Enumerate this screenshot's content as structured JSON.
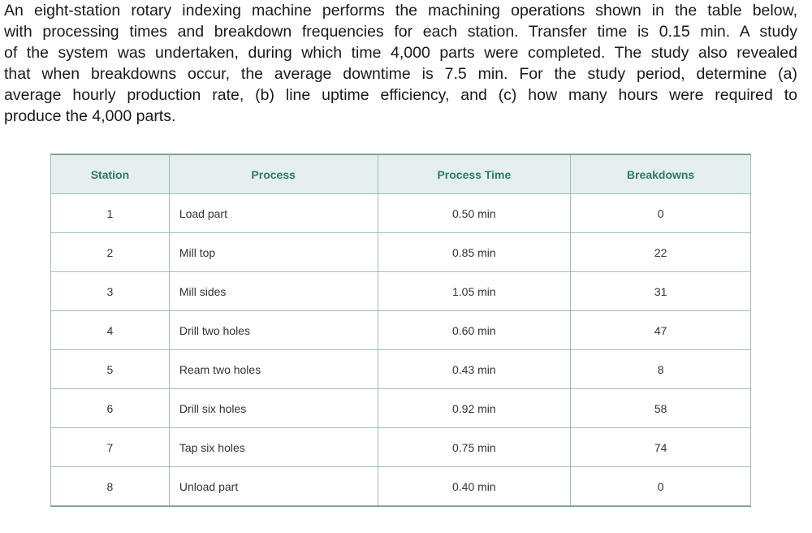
{
  "problem": {
    "lines": [
      "An eight-station rotary indexing machine performs the machining operations shown in the table below,",
      "with processing times and breakdown frequencies for each station. Transfer time is 0.15 min. A study",
      "of the system was undertaken, during which time 4,000 parts were completed. The study also revealed",
      "that when breakdowns occur, the average downtime is 7.5 min. For the study period, determine (a)",
      "average hourly production rate, (b) line uptime efficiency, and (c) how many hours were required to",
      "produce the 4,000 parts."
    ]
  },
  "table": {
    "headers": [
      "Station",
      "Process",
      "Process Time",
      "Breakdowns"
    ],
    "rows": [
      [
        "1",
        "Load part",
        "0.50 min",
        "0"
      ],
      [
        "2",
        "Mill top",
        "0.85 min",
        "22"
      ],
      [
        "3",
        "Mill sides",
        "1.05 min",
        "31"
      ],
      [
        "4",
        "Drill two holes",
        "0.60 min",
        "47"
      ],
      [
        "5",
        "Ream two holes",
        "0.43 min",
        "8"
      ],
      [
        "6",
        "Drill six holes",
        "0.92 min",
        "58"
      ],
      [
        "7",
        "Tap six holes",
        "0.75 min",
        "74"
      ],
      [
        "8",
        "Unload part",
        "0.40 min",
        "0"
      ]
    ]
  }
}
